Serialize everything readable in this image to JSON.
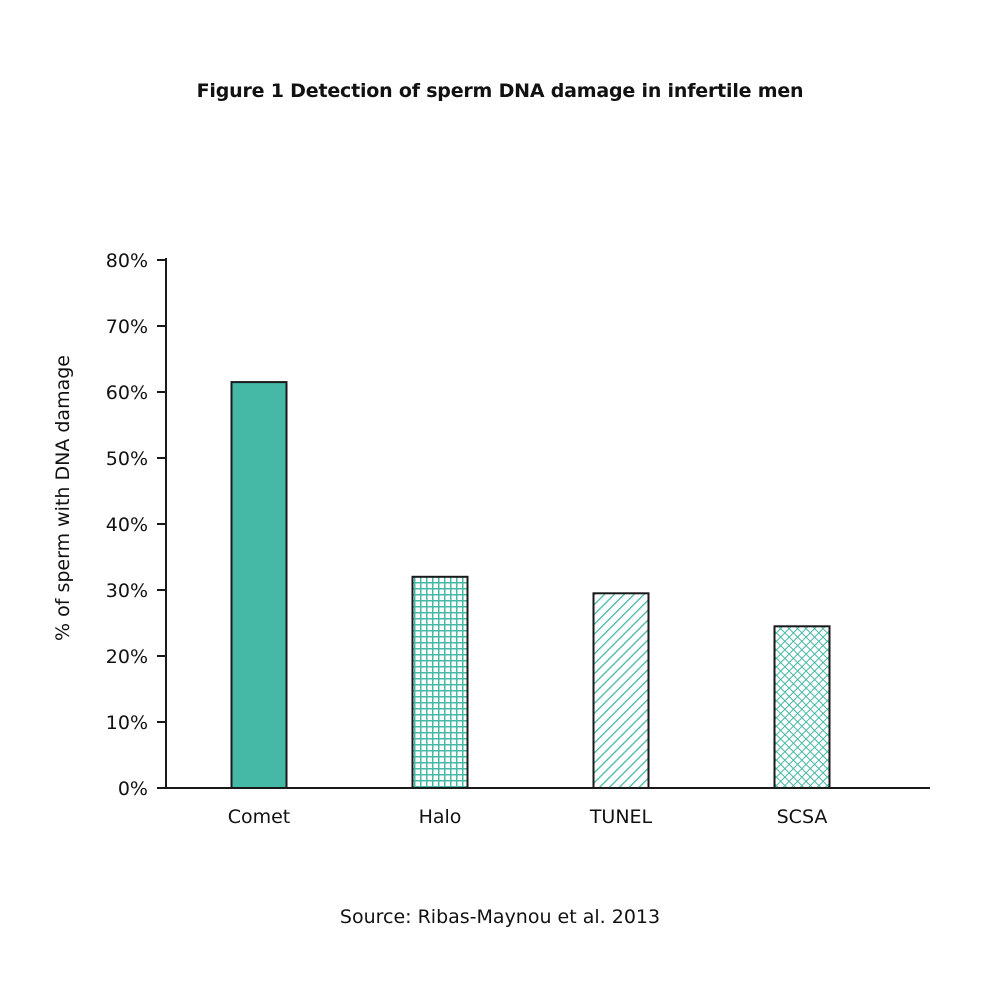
{
  "chart_data": {
    "type": "bar",
    "title": "Figure 1 Detection of sperm DNA damage in infertile men",
    "xlabel": "",
    "ylabel": "% of sperm with DNA damage",
    "categories": [
      "Comet",
      "Halo",
      "TUNEL",
      "SCSA"
    ],
    "values": [
      61.5,
      32,
      29.5,
      24.5
    ],
    "ylim": [
      0,
      80
    ],
    "yticks": [
      0,
      10,
      20,
      30,
      40,
      50,
      60,
      70,
      80
    ],
    "ytick_labels": [
      "0%",
      "10%",
      "20%",
      "30%",
      "40%",
      "50%",
      "60%",
      "70%",
      "80%"
    ],
    "bar_patterns": [
      "solid",
      "grid",
      "diagonal",
      "crosshatch"
    ],
    "colors": {
      "bar_fill": "#45b8a6",
      "bar_outline": "#1a1a1a",
      "axis": "#1a1a1a"
    },
    "grid": false,
    "legend": "none",
    "source": "Source: Ribas-Maynou et al. 2013"
  }
}
